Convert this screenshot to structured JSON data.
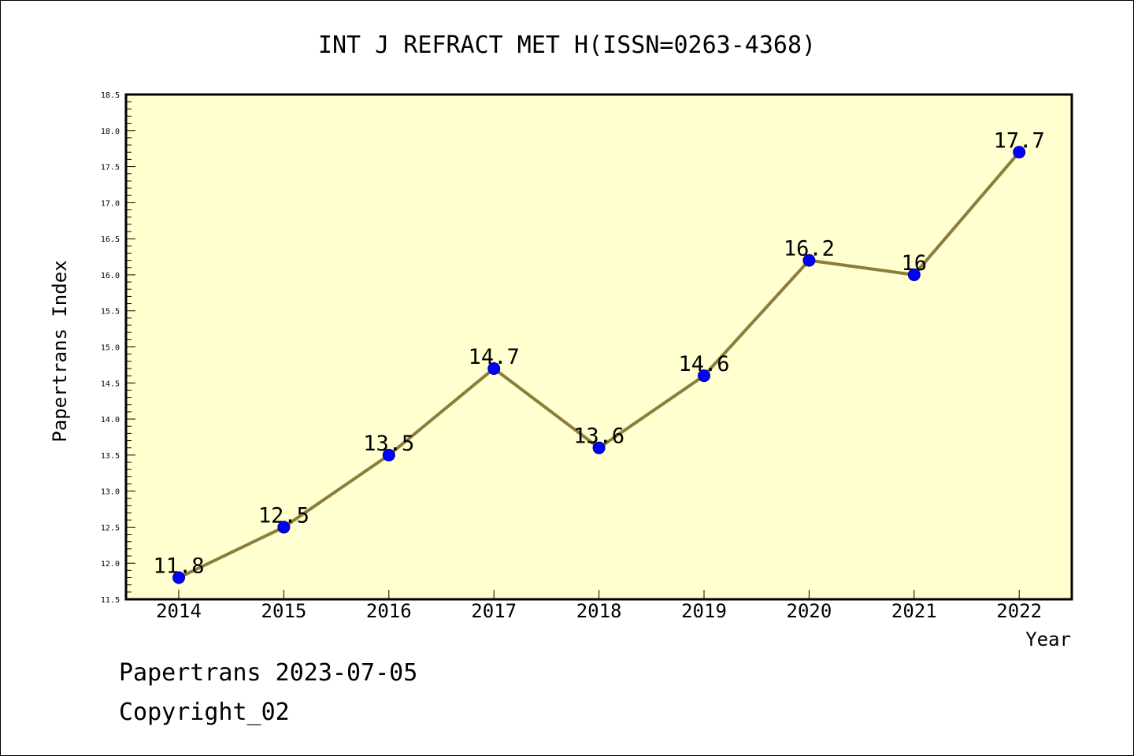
{
  "chart_data": {
    "type": "line",
    "title": "INT J REFRACT MET H(ISSN=0263-4368)",
    "xlabel": "Year",
    "ylabel": "Papertrans Index",
    "categories": [
      "2014",
      "2015",
      "2016",
      "2017",
      "2018",
      "2019",
      "2020",
      "2021",
      "2022"
    ],
    "values": [
      11.8,
      12.5,
      13.5,
      14.7,
      13.6,
      14.6,
      16.2,
      16,
      17.7
    ],
    "data_labels": [
      "11.8",
      "12.5",
      "13.5",
      "14.7",
      "13.6",
      "14.6",
      "16.2",
      "16",
      "17.7"
    ],
    "ylim": [
      11.5,
      18.5
    ],
    "yticks": [
      "11.5",
      "12.0",
      "12.5",
      "13.0",
      "13.5",
      "14.0",
      "14.5",
      "15.0",
      "15.5",
      "16.0",
      "16.5",
      "17.0",
      "17.5",
      "18.0",
      "18.5"
    ],
    "grid": false,
    "colors": {
      "plot_background": "#ffffd0",
      "line": "#8b7d3a",
      "marker": "#0000ff",
      "marker_edge": "#00008b"
    }
  },
  "footer": {
    "line1": "Papertrans 2023-07-05",
    "line2": "Copyright_02"
  }
}
